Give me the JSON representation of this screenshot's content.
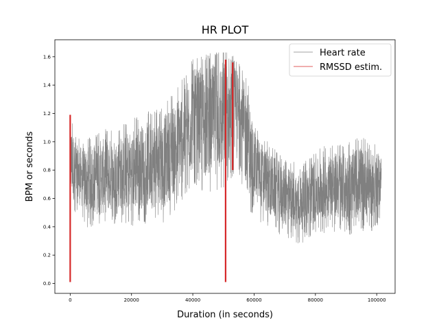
{
  "chart_data": {
    "type": "line",
    "title": "HR PLOT",
    "xlabel": "Duration (in seconds)",
    "ylabel": "BPM or seconds",
    "xlim": [
      -5000,
      106000
    ],
    "ylim": [
      -0.07,
      1.72
    ],
    "x_ticks": [
      0,
      20000,
      40000,
      60000,
      80000,
      100000
    ],
    "y_ticks": [
      0.0,
      0.2,
      0.4,
      0.6,
      0.8,
      1.0,
      1.2,
      1.4,
      1.6
    ],
    "x_tick_labels": [
      "0",
      "20000",
      "40000",
      "60000",
      "80000",
      "100000"
    ],
    "y_tick_labels": [
      "0.0",
      "0.2",
      "0.4",
      "0.6",
      "0.8",
      "1.0",
      "1.2",
      "1.4",
      "1.6"
    ],
    "grid": false,
    "legend_position": "top-right",
    "series": [
      {
        "name": "Heart rate",
        "color": "#808080",
        "envelope": {
          "x": [
            0,
            2000,
            5000,
            10000,
            15000,
            20000,
            25000,
            30000,
            35000,
            40000,
            45000,
            50000,
            52000,
            55000,
            58000,
            60000,
            65000,
            70000,
            75000,
            80000,
            85000,
            90000,
            95000,
            100000,
            101500
          ],
          "low": [
            0.58,
            0.55,
            0.48,
            0.45,
            0.5,
            0.48,
            0.5,
            0.48,
            0.62,
            0.75,
            0.7,
            0.75,
            0.8,
            0.82,
            0.6,
            0.55,
            0.45,
            0.38,
            0.35,
            0.4,
            0.45,
            0.4,
            0.45,
            0.45,
            0.58
          ],
          "high": [
            1.17,
            1.0,
            0.98,
            1.05,
            1.05,
            1.12,
            1.18,
            1.2,
            1.35,
            1.55,
            1.58,
            1.62,
            1.58,
            1.55,
            1.4,
            1.1,
            0.95,
            0.85,
            0.8,
            0.9,
            0.95,
            0.95,
            1.0,
            0.95,
            0.92
          ]
        }
      },
      {
        "name": "RMSSD estim.",
        "color": "#d62728",
        "segments": [
          {
            "x": 0,
            "y0": 0.01,
            "y1": 1.19
          },
          {
            "x": 50700,
            "y0": 0.01,
            "y1": 1.58
          },
          {
            "x": 53000,
            "y0": 0.8,
            "y1": 1.56
          }
        ]
      }
    ]
  }
}
